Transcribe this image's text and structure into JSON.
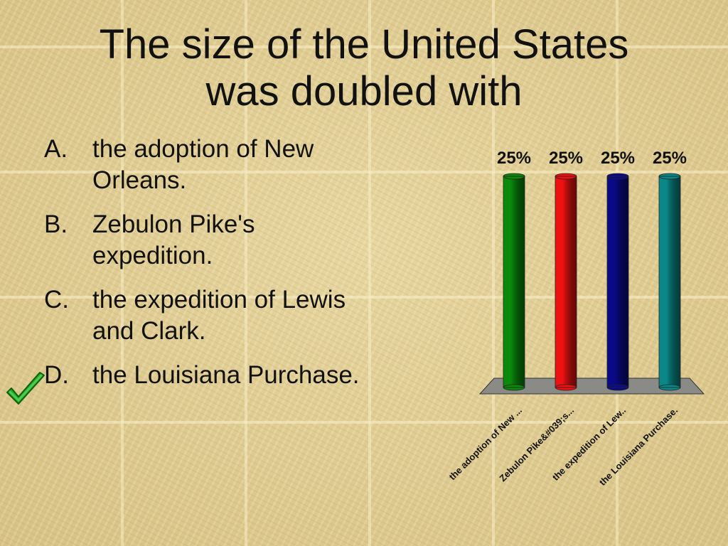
{
  "slide": {
    "title_line1": "The size of the United States",
    "title_line2": "was doubled with"
  },
  "answers": [
    {
      "letter": "A.",
      "text": "the adoption of New Orleans.",
      "correct": false
    },
    {
      "letter": "B.",
      "text": "Zebulon Pike's expedition.",
      "correct": false
    },
    {
      "letter": "C.",
      "text": "the expedition of Lewis and Clark.",
      "correct": false
    },
    {
      "letter": "D.",
      "text": "the Louisiana Purchase.",
      "correct": true
    }
  ],
  "correct_marker": {
    "icon": "checkmark-icon",
    "color": "#22aa22"
  },
  "chart_data": {
    "type": "bar",
    "categories": [
      "the adoption of New ...",
      "Zebulon Pike&#039;s...",
      "the expedition of Lew..",
      "the Louisiana Purchase."
    ],
    "values": [
      25,
      25,
      25,
      25
    ],
    "data_labels": [
      "25%",
      "25%",
      "25%",
      "25%"
    ],
    "colors": [
      "#0a8a0a",
      "#ee1111",
      "#0a0a88",
      "#0a8888"
    ],
    "ylim": [
      0,
      25
    ],
    "grid": false,
    "legend": "none",
    "title": "",
    "xlabel": "",
    "ylabel": ""
  }
}
